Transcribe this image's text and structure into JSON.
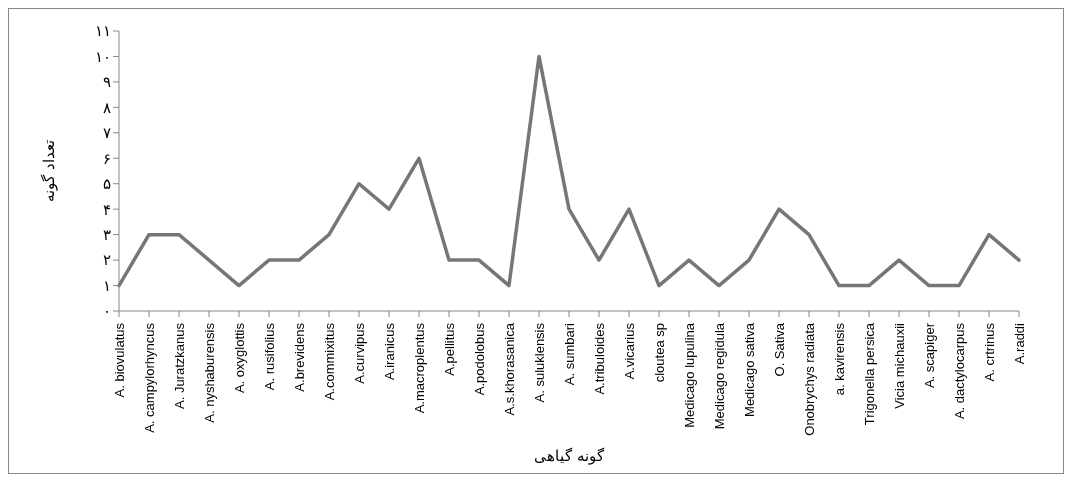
{
  "chart_data": {
    "type": "line",
    "xlabel": "گونه گیاهی",
    "ylabel": "تعداد گونه",
    "categories": [
      "A. biovulatus",
      "A. campylorhyncus",
      "A. Juratzkanus",
      "A. nyshaburensis",
      "A. oxyglottis",
      "A. rusifolius",
      "A.brevidens",
      "A.commixitus",
      "A.curvipus",
      "A.iranicus",
      "A.macroplentus",
      "A.pellitus",
      "A.podolobus",
      "A.s.khorasanica",
      "A. suluklensis",
      "A. sumbari",
      "A.tribuloides",
      "A.vicarius",
      "cloutea sp",
      "Medicago lupulina",
      "Medicago regidula",
      "Medicago sativa",
      "O. Sativa",
      "Onobrychys radiata",
      "a. kavirensis",
      "Trigonella persica",
      "Vicia michauxii",
      "A. scapiger",
      "A. dactylocarpus",
      "A. crtrinus",
      "A.raddi"
    ],
    "series": [
      {
        "color": "#767676",
        "values": [
          1,
          3,
          3,
          2,
          1,
          2,
          2,
          3,
          5,
          4,
          6,
          2,
          2,
          1,
          10,
          4,
          2,
          4,
          1,
          2,
          1,
          2,
          4,
          3,
          1,
          1,
          2,
          1,
          1,
          3,
          2
        ]
      }
    ],
    "ylim": [
      0,
      11
    ],
    "yticks": [
      {
        "value": 0,
        "label": "۰"
      },
      {
        "value": 1,
        "label": "۱"
      },
      {
        "value": 2,
        "label": "۲"
      },
      {
        "value": 3,
        "label": "۳"
      },
      {
        "value": 4,
        "label": "۴"
      },
      {
        "value": 5,
        "label": "۵"
      },
      {
        "value": 6,
        "label": "۶"
      },
      {
        "value": 7,
        "label": "۷"
      },
      {
        "value": 8,
        "label": "۸"
      },
      {
        "value": 9,
        "label": "۹"
      },
      {
        "value": 10,
        "label": "۱۰"
      },
      {
        "value": 11,
        "label": "۱۱"
      }
    ],
    "marker": "none",
    "line_style": "solid"
  }
}
